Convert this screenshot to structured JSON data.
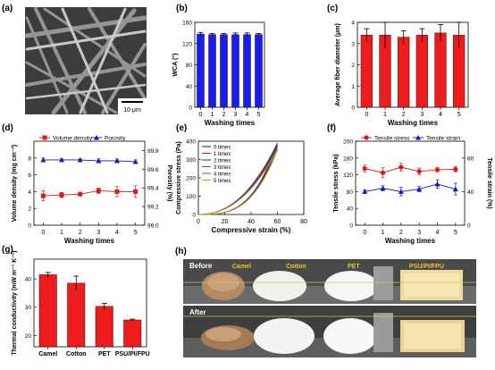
{
  "panels": {
    "a": {
      "label": "(a)",
      "scale_bar": "10 μm"
    },
    "h": {
      "label": "(h)",
      "row_labels": [
        "Before",
        "After"
      ],
      "sample_labels": [
        "Camel",
        "Cotton",
        "PET",
        "PSU/PI/FPU"
      ]
    }
  },
  "chart_data": [
    {
      "panel": "(b)",
      "type": "bar",
      "categories": [
        "0",
        "1",
        "2",
        "3",
        "4",
        "5"
      ],
      "values": [
        138,
        137,
        137,
        137,
        137,
        137
      ],
      "errors": [
        3,
        2,
        2,
        3,
        3,
        2
      ],
      "xlabel": "Washing times",
      "ylabel": "WCA (°)",
      "ylim": [
        0,
        160
      ],
      "yticks": [
        0,
        40,
        80,
        120,
        160
      ],
      "color": "#1c1cf0"
    },
    {
      "panel": "(c)",
      "type": "bar",
      "categories": [
        "0",
        "1",
        "2",
        "3",
        "4",
        "5"
      ],
      "values": [
        3.4,
        3.4,
        3.3,
        3.4,
        3.5,
        3.4
      ],
      "errors": [
        0.3,
        0.6,
        0.3,
        0.3,
        0.4,
        0.6
      ],
      "xlabel": "Washing times",
      "ylabel": "Average fiber diameter (μm)",
      "ylim": [
        0,
        4
      ],
      "yticks": [
        0,
        1,
        2,
        3,
        4
      ],
      "color": "#ee1c1c"
    },
    {
      "panel": "(d)",
      "type": "line",
      "x": [
        0,
        1,
        2,
        3,
        4,
        5
      ],
      "xlabel": "Washing times",
      "ylabel": "Volume density (mg cm⁻³)",
      "ylabel_right": "Porosity (%)",
      "ylim": [
        0,
        10
      ],
      "yticks": [
        0,
        2,
        4,
        6,
        8
      ],
      "ylim_right": [
        99.0,
        99.9
      ],
      "yticks_right": [
        "99.0",
        "99.2",
        "99.4",
        "99.6",
        "99.8"
      ],
      "xlim": [
        -0.5,
        5.5
      ],
      "series": [
        {
          "name": "Volume density",
          "axis": "left",
          "marker": "square",
          "color": "#dd1818",
          "values": [
            3.5,
            3.6,
            3.7,
            4.1,
            4.0,
            4.0
          ],
          "errors": [
            0.6,
            0.3,
            0.2,
            0.3,
            0.6,
            0.7
          ]
        },
        {
          "name": "Porosity",
          "axis": "right",
          "marker": "triangle",
          "color": "#1818bb",
          "values": [
            99.7,
            99.7,
            99.7,
            99.69,
            99.69,
            99.68
          ],
          "errors": [
            0.02,
            0.01,
            0.01,
            0.02,
            0.02,
            0.02
          ]
        }
      ],
      "legend": "top"
    },
    {
      "panel": "(e)",
      "type": "line",
      "xlabel": "Compressive strain (%)",
      "ylabel": "Compressive stress (Pa)",
      "xlim": [
        0,
        80
      ],
      "xticks": [
        0,
        20,
        40,
        60,
        80
      ],
      "ylim": [
        0,
        400
      ],
      "yticks": [
        0,
        100,
        200,
        300,
        400
      ],
      "series": [
        {
          "name": "0 times",
          "color": "#222222",
          "peak": [
            60,
            390
          ]
        },
        {
          "name": "1 times",
          "color": "#dd1818",
          "peak": [
            60,
            382
          ]
        },
        {
          "name": "2 times",
          "color": "#1818bb",
          "peak": [
            60,
            375
          ]
        },
        {
          "name": "3 times",
          "color": "#18a018",
          "peak": [
            60,
            368
          ]
        },
        {
          "name": "4 times",
          "color": "#8a2be2",
          "peak": [
            60,
            360
          ]
        },
        {
          "name": "5 times",
          "color": "#c8a000",
          "peak": [
            60,
            352
          ]
        }
      ],
      "legend": "top-left"
    },
    {
      "panel": "(f)",
      "type": "line",
      "x": [
        0,
        1,
        2,
        3,
        4,
        5
      ],
      "xlabel": "Washing times",
      "ylabel": "Tensile stress (kPa)",
      "ylabel_right": "Tensile strain (%)",
      "ylim": [
        0,
        200
      ],
      "yticks": [
        0,
        40,
        80,
        120,
        160,
        200
      ],
      "ylim_right": [
        0,
        100
      ],
      "yticks_right": [
        0,
        40,
        80
      ],
      "xlim": [
        -0.5,
        5.5
      ],
      "series": [
        {
          "name": "Tensile stress",
          "axis": "left",
          "marker": "circle",
          "color": "#dd1818",
          "values": [
            135,
            125,
            138,
            128,
            132,
            133
          ],
          "errors": [
            8,
            12,
            10,
            8,
            5,
            6
          ]
        },
        {
          "name": "Tensile strain",
          "axis": "right",
          "marker": "triangle",
          "color": "#1818bb",
          "values": [
            40,
            44,
            40,
            43,
            49,
            43
          ],
          "errors": [
            2,
            3,
            5,
            3,
            5,
            7
          ]
        }
      ],
      "legend": "top"
    },
    {
      "panel": "(g)",
      "type": "bar",
      "categories": [
        "Camel",
        "Cotton",
        "PET",
        "PSU/PI/FPU"
      ],
      "values": [
        41.5,
        38.5,
        30.3,
        25.5
      ],
      "errors": [
        0.8,
        2.5,
        1.0,
        0.3
      ],
      "ylabel": "Thermal conductivity (mW m⁻¹ K⁻¹)",
      "ylim": [
        16,
        47
      ],
      "yticks": [
        20,
        30,
        40
      ],
      "color": "#ee1c1c"
    }
  ]
}
